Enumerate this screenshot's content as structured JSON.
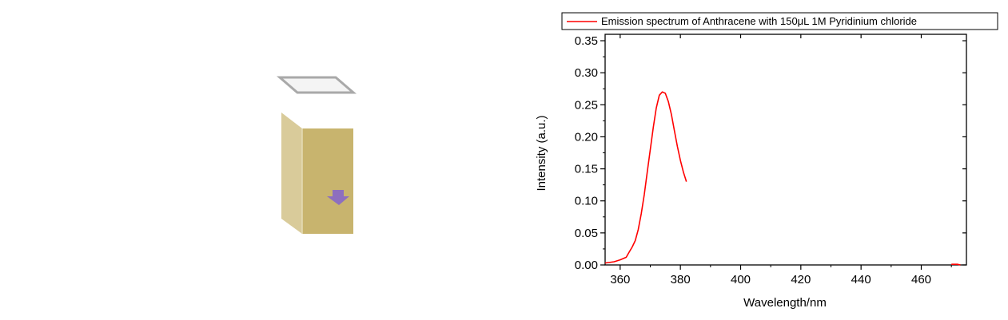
{
  "illustration": {
    "name": "cuvette",
    "colors": {
      "cap": "#a9a9a9",
      "cap_fill": "#f4f4f4",
      "side_face": "#d9cb9a",
      "front_face": "#c8b46e",
      "marker": "#8d6fbf"
    }
  },
  "chart_data": {
    "type": "line",
    "xlabel": "Wavelength/nm",
    "ylabel": "Intensity (a.u.)",
    "xlim": [
      355,
      475
    ],
    "ylim": [
      0,
      0.36
    ],
    "x_ticks": [
      360,
      380,
      400,
      420,
      440,
      460
    ],
    "x_tick_labels": [
      "360",
      "380",
      "400",
      "420",
      "440",
      "460"
    ],
    "y_ticks": [
      0,
      0.05,
      0.1,
      0.15,
      0.2,
      0.25,
      0.3,
      0.35
    ],
    "y_tick_labels": [
      "0.00",
      "0.05",
      "0.10",
      "0.15",
      "0.20",
      "0.25",
      "0.30",
      "0.35"
    ],
    "legend_position": "top",
    "grid": false,
    "series": [
      {
        "name": "Emission spectrum of Anthracene with 150μL 1M Pyridinium chloride",
        "color": "#ff0000",
        "points": [
          [
            355,
            0.003
          ],
          [
            358,
            0.005
          ],
          [
            360,
            0.008
          ],
          [
            362,
            0.012
          ],
          [
            363,
            0.02
          ],
          [
            364,
            0.028
          ],
          [
            365,
            0.038
          ],
          [
            366,
            0.055
          ],
          [
            367,
            0.08
          ],
          [
            368,
            0.11
          ],
          [
            369,
            0.145
          ],
          [
            370,
            0.18
          ],
          [
            371,
            0.215
          ],
          [
            372,
            0.245
          ],
          [
            373,
            0.265
          ],
          [
            374,
            0.27
          ],
          [
            375,
            0.268
          ],
          [
            376,
            0.255
          ],
          [
            377,
            0.235
          ],
          [
            378,
            0.21
          ],
          [
            379,
            0.185
          ],
          [
            380,
            0.163
          ],
          [
            381,
            0.145
          ],
          [
            382,
            0.13
          ]
        ],
        "tail_points": [
          [
            470,
            0.001
          ],
          [
            472,
            0.001
          ],
          [
            473,
            0.0
          ]
        ]
      }
    ]
  }
}
